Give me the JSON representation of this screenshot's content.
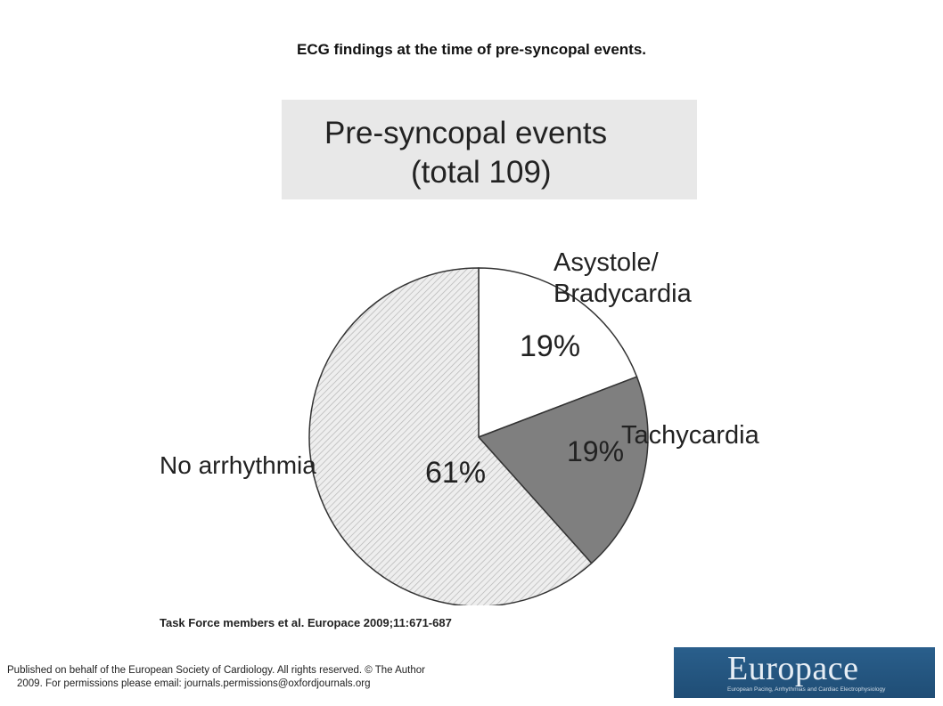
{
  "page": {
    "title": "ECG findings at the time of pre-syncopal events.",
    "citation": "Task Force members et al. Europace 2009;11:671-687",
    "footer_line1": "Published on behalf of the European Society of Cardiology. All rights reserved. © The Author",
    "footer_line2": "2009. For permissions please email: journals.permissions@oxfordjournals.org",
    "logo_text": "Europace",
    "logo_subtitle": "European Pacing, Arrhythmias and Cardiac Electrophysiology"
  },
  "chart_data": {
    "type": "pie",
    "title_line1": "Pre-syncopal events",
    "title_line2": "(total 109)",
    "categories": [
      "Asystole/ Bradycardia",
      "Tachycardia",
      "No arrhythmia"
    ],
    "category_lines": [
      [
        "Asystole/",
        "Bradycardia"
      ],
      [
        "Tachycardia"
      ],
      [
        "No arrhythmia"
      ]
    ],
    "values": [
      19,
      19,
      61
    ],
    "value_labels": [
      "19%",
      "19%",
      "61%"
    ],
    "colors": [
      "#ffffff",
      "#7f7f7f",
      "hatched-light-gray"
    ],
    "start_angle_deg": 0,
    "direction": "clockwise"
  }
}
